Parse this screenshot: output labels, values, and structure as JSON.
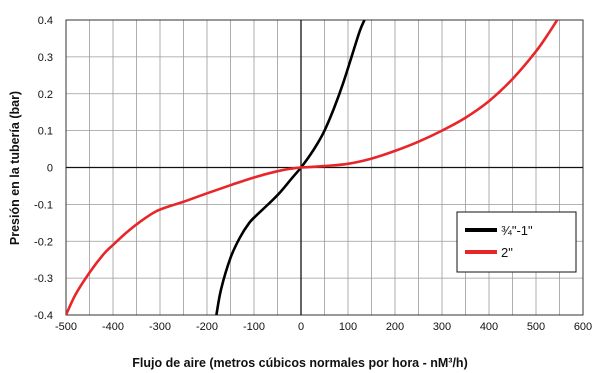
{
  "chart_data": {
    "type": "line",
    "xlabel": "Flujo de aire (metros cúbicos normales por hora -  nM³/h)",
    "ylabel": "Presión en la tubería (bar)",
    "xlim": [
      -500,
      600
    ],
    "ylim": [
      -0.4,
      0.4
    ],
    "x_ticks": [
      "-500",
      "-400",
      "-300",
      "-200",
      "-100",
      "0",
      "100",
      "200",
      "300",
      "400",
      "500",
      "600"
    ],
    "y_ticks": [
      "0.4",
      "0.3",
      "0.2",
      "0.1",
      "0",
      "-0.1",
      "-0.2",
      "-0.3",
      "-0.4"
    ],
    "x_minor_step": 50,
    "grid": true,
    "legend": "right",
    "series": [
      {
        "name": "¾\"-1\"",
        "color": "#000000",
        "points": [
          [
            -180,
            -0.4
          ],
          [
            -170,
            -0.33
          ],
          [
            -150,
            -0.245
          ],
          [
            -130,
            -0.19
          ],
          [
            -110,
            -0.15
          ],
          [
            -95,
            -0.13
          ],
          [
            -70,
            -0.1
          ],
          [
            -45,
            -0.068
          ],
          [
            -20,
            -0.03
          ],
          [
            0,
            0.0
          ],
          [
            20,
            0.035
          ],
          [
            35,
            0.065
          ],
          [
            50,
            0.1
          ],
          [
            70,
            0.16
          ],
          [
            90,
            0.23
          ],
          [
            110,
            0.31
          ],
          [
            125,
            0.37
          ],
          [
            135,
            0.4
          ]
        ]
      },
      {
        "name": "2\"",
        "color": "#e8262a",
        "points": [
          [
            -500,
            -0.4
          ],
          [
            -480,
            -0.345
          ],
          [
            -450,
            -0.285
          ],
          [
            -420,
            -0.235
          ],
          [
            -400,
            -0.21
          ],
          [
            -370,
            -0.175
          ],
          [
            -340,
            -0.145
          ],
          [
            -310,
            -0.12
          ],
          [
            -280,
            -0.105
          ],
          [
            -250,
            -0.093
          ],
          [
            -200,
            -0.07
          ],
          [
            -150,
            -0.048
          ],
          [
            -100,
            -0.027
          ],
          [
            -50,
            -0.01
          ],
          [
            -20,
            -0.003
          ],
          [
            0,
            0.0
          ],
          [
            50,
            0.004
          ],
          [
            100,
            0.01
          ],
          [
            150,
            0.024
          ],
          [
            200,
            0.045
          ],
          [
            250,
            0.07
          ],
          [
            300,
            0.1
          ],
          [
            350,
            0.135
          ],
          [
            400,
            0.18
          ],
          [
            450,
            0.24
          ],
          [
            500,
            0.315
          ],
          [
            530,
            0.37
          ],
          [
            545,
            0.4
          ]
        ]
      }
    ]
  }
}
